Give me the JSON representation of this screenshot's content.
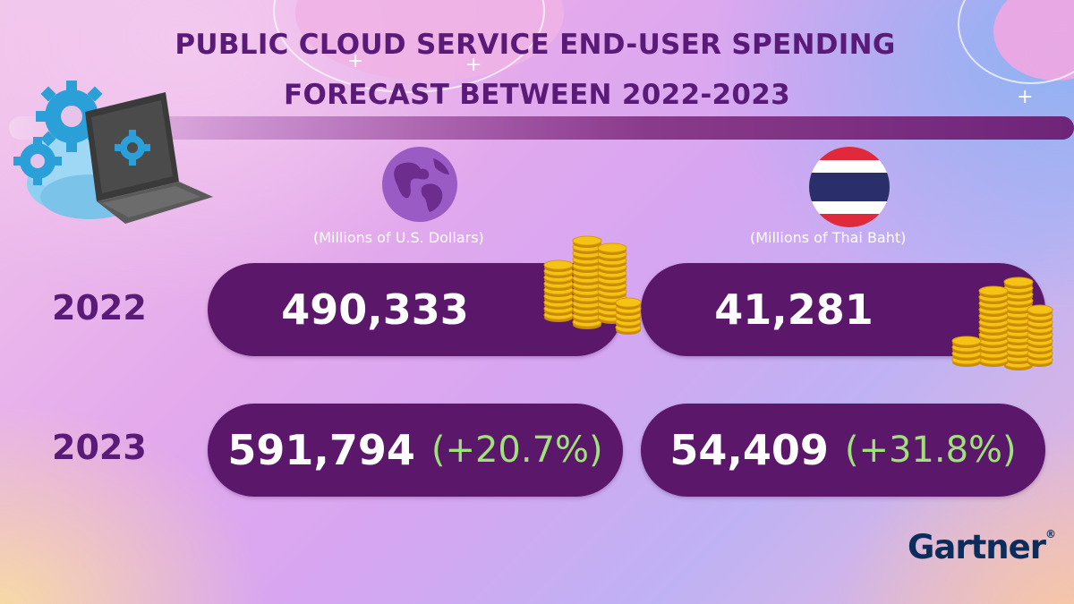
{
  "title": {
    "line1": "PUBLIC CLOUD SERVICE END-USER SPENDING",
    "line2": "FORECAST BETWEEN 2022-2023"
  },
  "columns": [
    {
      "unit": "(Millions of U.S. Dollars)",
      "icon": "globe-icon"
    },
    {
      "unit": "(Millions of Thai Baht)",
      "icon": "thailand-flag-icon"
    }
  ],
  "rows": [
    {
      "year": "2022",
      "usd": "490,333",
      "thb": "41,281"
    },
    {
      "year": "2023",
      "usd": "591,794",
      "usd_change": "(+20.7%)",
      "thb": "54,409",
      "thb_change": "(+31.8%)"
    }
  ],
  "brand": {
    "name": "Gartner",
    "mark": "®"
  },
  "colors": {
    "title": "#5a1a78",
    "pill": "#5b1769",
    "growth": "#9ee27a",
    "brand": "#0c2d5c"
  }
}
